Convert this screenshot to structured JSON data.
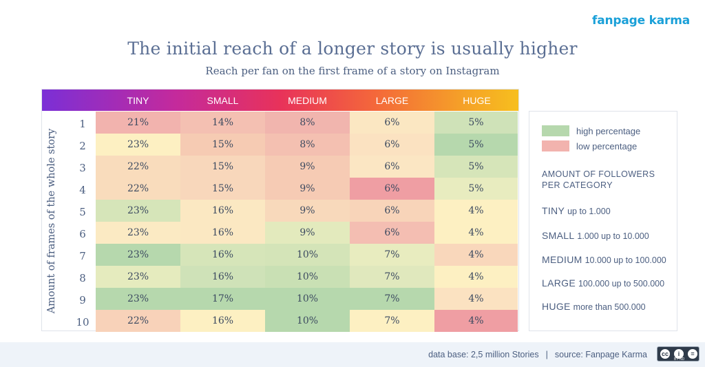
{
  "brand": "fanpage karma",
  "chart_data": {
    "type": "heatmap",
    "title": "The initial reach of a longer story is usually higher",
    "subtitle": "Reach per fan on the first frame of a story on Instagram",
    "xlabel": "",
    "ylabel": "Amount of frames of the whole story",
    "columns": [
      "TINY",
      "SMALL",
      "MEDIUM",
      "LARGE",
      "HUGE"
    ],
    "rows": [
      "1",
      "2",
      "3",
      "4",
      "5",
      "6",
      "7",
      "8",
      "9",
      "10"
    ],
    "values": [
      [
        21,
        14,
        8,
        6,
        5
      ],
      [
        23,
        15,
        8,
        6,
        5
      ],
      [
        22,
        15,
        9,
        6,
        5
      ],
      [
        22,
        15,
        9,
        6,
        5
      ],
      [
        23,
        16,
        9,
        6,
        4
      ],
      [
        23,
        16,
        9,
        6,
        4
      ],
      [
        23,
        16,
        10,
        7,
        4
      ],
      [
        23,
        16,
        10,
        7,
        4
      ],
      [
        23,
        17,
        10,
        7,
        4
      ],
      [
        22,
        16,
        10,
        7,
        4
      ]
    ],
    "labels": [
      [
        "21%",
        "14%",
        "8%",
        "6%",
        "5%"
      ],
      [
        "23%",
        "15%",
        "8%",
        "6%",
        "5%"
      ],
      [
        "22%",
        "15%",
        "9%",
        "6%",
        "5%"
      ],
      [
        "22%",
        "15%",
        "9%",
        "6%",
        "5%"
      ],
      [
        "23%",
        "16%",
        "9%",
        "6%",
        "4%"
      ],
      [
        "23%",
        "16%",
        "9%",
        "6%",
        "4%"
      ],
      [
        "23%",
        "16%",
        "10%",
        "7%",
        "4%"
      ],
      [
        "23%",
        "16%",
        "10%",
        "7%",
        "4%"
      ],
      [
        "23%",
        "17%",
        "10%",
        "7%",
        "4%"
      ],
      [
        "22%",
        "16%",
        "10%",
        "7%",
        "4%"
      ]
    ],
    "cell_colors": [
      [
        "#f2b3ae",
        "#f4c0b2",
        "#f1b5ae",
        "#fbe7c2",
        "#cfe2b8"
      ],
      [
        "#fdf0c2",
        "#f6cbb3",
        "#f4c0b1",
        "#fbe2c1",
        "#b6d8ad"
      ],
      [
        "#f9dcbc",
        "#f8d7bb",
        "#f6cbb4",
        "#fbe6c3",
        "#d6e5b9"
      ],
      [
        "#f9dcbc",
        "#f8d7bb",
        "#f6cbb4",
        "#ef9ea3",
        "#e8ecbf"
      ],
      [
        "#d6e5b9",
        "#fbe8c2",
        "#f8d9bb",
        "#f8d4b9",
        "#fdf0c2"
      ],
      [
        "#fbeac3",
        "#fbe8c2",
        "#e3eabd",
        "#f4beb2",
        "#fdf0c2"
      ],
      [
        "#b6d8ad",
        "#d6e5b9",
        "#d4e4b8",
        "#e8ecbf",
        "#f9d7bb"
      ],
      [
        "#e5ebbe",
        "#cfe2b8",
        "#c9e0b4",
        "#e0e8bd",
        "#fdf0c2"
      ],
      [
        "#b6d8ad",
        "#b6d8ad",
        "#b6d8ad",
        "#b6d8ad",
        "#fbe2c1"
      ],
      [
        "#f8d2b9",
        "#fdf0c2",
        "#b6d8ad",
        "#fdf0c2",
        "#ef9ea3"
      ]
    ],
    "gradient_colors": [
      "#7b2fd6",
      "#c42a9c",
      "#e8325a",
      "#f4683a",
      "#f5a028",
      "#f7bf1e"
    ]
  },
  "legend": {
    "high_label": "high percentage",
    "high_color": "#b6d8ad",
    "low_label": "low percentage",
    "low_color": "#f2b3ae",
    "heading_line1": "AMOUNT OF FOLLOWERS",
    "heading_line2": "PER CATEGORY",
    "categories": [
      {
        "name": "TINY",
        "range": "up to 1.000"
      },
      {
        "name": "SMALL",
        "range": "1.000 up to 10.000"
      },
      {
        "name": "MEDIUM",
        "range": "10.000 up to 100.000"
      },
      {
        "name": "LARGE",
        "range": "100.000 up to 500.000"
      },
      {
        "name": "HUGE",
        "range": "more than 500.000"
      }
    ]
  },
  "footer": {
    "data_base": "data base: 2,5 million Stories",
    "separator": "|",
    "source": "source: Fanpage Karma",
    "license_icon": "cc-by-nd-icon",
    "license_text": "BY ND"
  }
}
